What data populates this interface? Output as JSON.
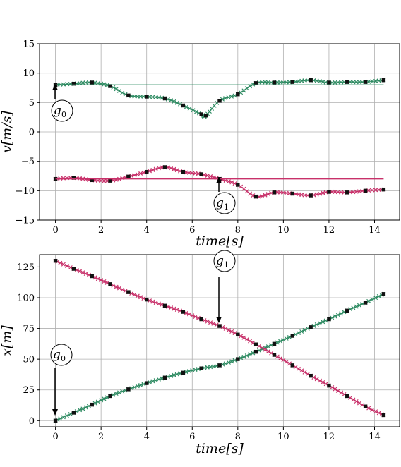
{
  "chart_data": [
    {
      "type": "line",
      "xlabel": "time[s]",
      "ylabel": "v[m/s]",
      "xlim": [
        -0.7,
        15.1
      ],
      "ylim": [
        -15,
        15
      ],
      "xticks": [
        0,
        2,
        4,
        6,
        8,
        10,
        12,
        14
      ],
      "yticks": [
        -15,
        -10,
        -5,
        0,
        5,
        10,
        15
      ],
      "grid": true,
      "series": [
        {
          "color": "#2e8b62",
          "marker": "x",
          "x": [
            0,
            0.8,
            1.6,
            2.4,
            3.2,
            4.0,
            4.8,
            5.6,
            6.4,
            6.6,
            7.2,
            8.0,
            8.8,
            9.6,
            10.4,
            11.2,
            12.0,
            12.8,
            13.6,
            14.4
          ],
          "y": [
            8.0,
            8.2,
            8.4,
            7.8,
            6.2,
            6.0,
            5.7,
            4.5,
            3.0,
            2.8,
            5.3,
            6.4,
            8.3,
            8.4,
            8.5,
            8.8,
            8.4,
            8.5,
            8.5,
            8.8
          ]
        },
        {
          "color": "#2e8b62",
          "marker": "none",
          "x": [
            0,
            14.4
          ],
          "y": [
            8.0,
            8.0
          ]
        },
        {
          "color": "#c8316a",
          "marker": "x",
          "x": [
            0,
            0.8,
            1.6,
            2.4,
            3.2,
            4.0,
            4.8,
            5.6,
            6.4,
            7.2,
            8.0,
            8.8,
            9.6,
            10.4,
            11.2,
            12.0,
            12.8,
            13.6,
            14.4
          ],
          "y": [
            -8.0,
            -7.8,
            -8.2,
            -8.3,
            -7.6,
            -6.8,
            -6.0,
            -6.8,
            -7.2,
            -8.0,
            -9.0,
            -11.0,
            -10.3,
            -10.5,
            -10.8,
            -10.2,
            -10.3,
            -10.0,
            -9.8
          ]
        },
        {
          "color": "#c8316a",
          "marker": "none",
          "x": [
            0,
            14.4
          ],
          "y": [
            -8.0,
            -8.0
          ]
        }
      ],
      "annotations": [
        {
          "text": "g",
          "sub": "0",
          "target": [
            0,
            8.0
          ],
          "arrow": "up"
        },
        {
          "text": "g",
          "sub": "1",
          "target": [
            7.2,
            -8.0
          ],
          "arrow": "up"
        }
      ]
    },
    {
      "type": "line",
      "xlabel": "time[s]",
      "ylabel": "x[m]",
      "xlim": [
        -0.7,
        15.1
      ],
      "ylim": [
        -5,
        135
      ],
      "xticks": [
        0,
        2,
        4,
        6,
        8,
        10,
        12,
        14
      ],
      "yticks": [
        0,
        25,
        50,
        75,
        100,
        125
      ],
      "grid": true,
      "series": [
        {
          "color": "#2e8b62",
          "marker": "x",
          "x": [
            0,
            0.8,
            1.6,
            2.4,
            3.2,
            4.0,
            4.8,
            5.6,
            6.4,
            7.2,
            8.0,
            8.8,
            9.6,
            10.4,
            11.2,
            12.0,
            12.8,
            13.6,
            14.4
          ],
          "y": [
            0,
            6.5,
            13.0,
            20.0,
            25.5,
            30.5,
            35.0,
            39.0,
            42.5,
            45.0,
            50.0,
            56.0,
            62.5,
            69.0,
            76.0,
            82.5,
            89.5,
            96.0,
            103.0
          ]
        },
        {
          "color": "#c8316a",
          "marker": "x",
          "x": [
            0,
            0.8,
            1.6,
            2.4,
            3.2,
            4.0,
            4.8,
            5.6,
            6.4,
            7.2,
            8.0,
            8.8,
            9.6,
            10.4,
            11.2,
            12.0,
            12.8,
            13.6,
            14.4
          ],
          "y": [
            130.0,
            123.5,
            117.5,
            111.0,
            104.5,
            98.5,
            93.5,
            88.5,
            82.5,
            77.0,
            70.0,
            62.0,
            53.5,
            45.0,
            36.5,
            28.5,
            20.0,
            11.5,
            4.5
          ]
        }
      ],
      "annotations": [
        {
          "text": "g",
          "sub": "1",
          "target": [
            7.2,
            77.0
          ],
          "arrow": "down"
        },
        {
          "text": "g",
          "sub": "0",
          "target": [
            0,
            0
          ],
          "arrow": "down"
        }
      ]
    }
  ]
}
